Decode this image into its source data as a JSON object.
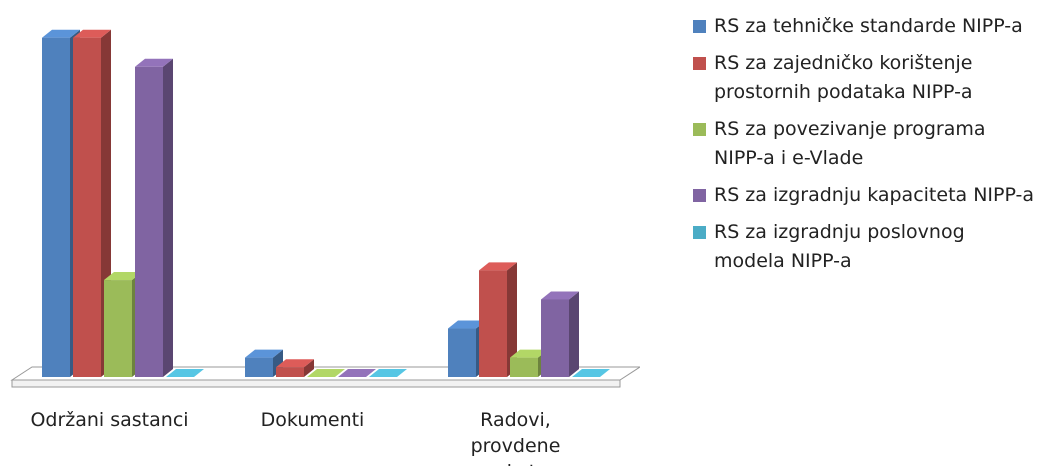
{
  "chart_data": {
    "type": "bar3d",
    "categories": [
      "Održani sastanci",
      "Dokumenti",
      "Radovi, provdene ankete"
    ],
    "series": [
      {
        "name": "RS za tehničke standarde NIPP-a",
        "color": "#4f81bd",
        "values": [
          35,
          2,
          5
        ]
      },
      {
        "name": "RS za zajedničko korištenje prostornih podataka NIPP-a",
        "color": "#c0504d",
        "values": [
          35,
          1,
          11
        ]
      },
      {
        "name": "RS za povezivanje programa NIPP-a i e-Vlade",
        "color": "#9bbb59",
        "values": [
          10,
          0,
          2
        ]
      },
      {
        "name": "RS za izgradnju kapaciteta NIPP-a",
        "color": "#8064a2",
        "values": [
          32,
          0,
          8
        ]
      },
      {
        "name": "RS za izgradnju poslovnog modela NIPP-a",
        "color": "#4bacc6",
        "values": [
          0,
          0,
          0
        ]
      }
    ],
    "ylim": [
      0,
      36
    ],
    "legend": "right"
  }
}
